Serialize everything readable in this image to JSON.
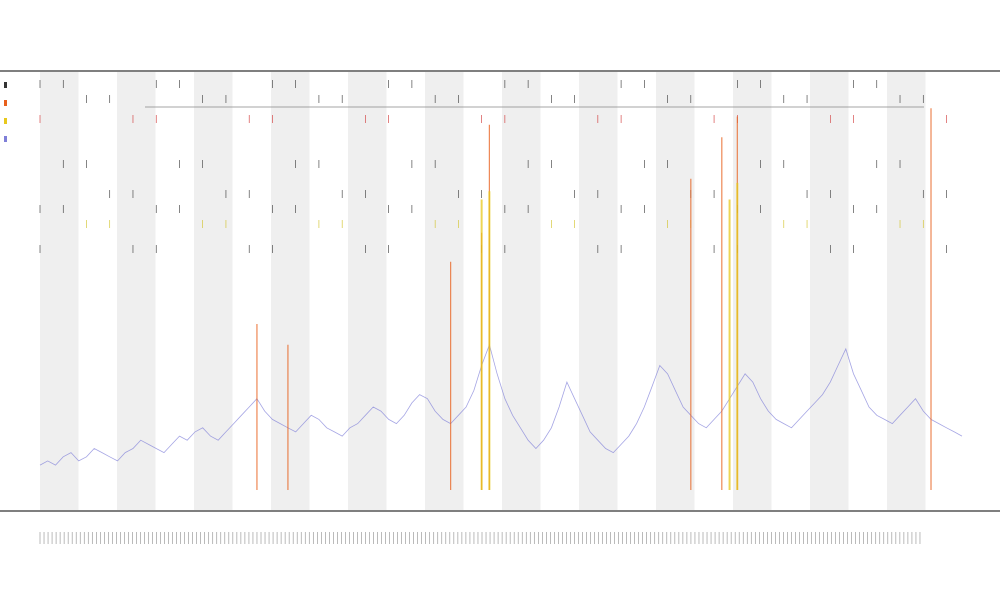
{
  "header": {
    "title": "",
    "subtitle_1": "",
    "subtitle_2": ""
  },
  "chart_data": {
    "type": "line",
    "title": "",
    "xlabel": "",
    "ylabel": "",
    "grid": false,
    "legend_position": "top-left",
    "background_bands": "alternating-gray",
    "x": [
      0,
      1,
      2,
      3,
      4,
      5,
      6,
      7,
      8,
      9,
      10,
      11,
      12,
      13,
      14,
      15,
      16,
      17,
      18,
      19,
      20,
      21,
      22,
      23,
      24,
      25,
      26,
      27,
      28,
      29,
      30,
      31,
      32,
      33,
      34,
      35,
      36,
      37,
      38,
      39,
      40,
      41,
      42,
      43,
      44,
      45,
      46,
      47,
      48,
      49,
      50,
      51,
      52,
      53,
      54,
      55,
      56,
      57,
      58,
      59,
      60,
      61,
      62,
      63,
      64,
      65,
      66,
      67,
      68,
      69,
      70,
      71,
      72,
      73,
      74,
      75,
      76,
      77,
      78,
      79,
      80,
      81,
      82,
      83,
      84,
      85,
      86,
      87,
      88,
      89,
      90,
      91,
      92,
      93,
      94,
      95,
      96,
      97,
      98,
      99,
      100,
      101,
      102,
      103,
      104,
      105,
      106,
      107,
      108,
      109,
      110,
      111,
      112,
      113,
      114,
      115,
      116,
      117,
      118,
      119
    ],
    "series": [
      {
        "color": "#7f7fd8",
        "values": [
          6,
          7,
          6,
          8,
          9,
          7,
          8,
          10,
          9,
          8,
          7,
          9,
          10,
          12,
          11,
          10,
          9,
          11,
          13,
          12,
          14,
          15,
          13,
          12,
          14,
          16,
          18,
          20,
          22,
          19,
          17,
          16,
          15,
          14,
          16,
          18,
          17,
          15,
          14,
          13,
          15,
          16,
          18,
          20,
          19,
          17,
          16,
          18,
          21,
          23,
          22,
          19,
          17,
          16,
          18,
          20,
          24,
          30,
          35,
          28,
          22,
          18,
          15,
          12,
          10,
          12,
          15,
          20,
          26,
          22,
          18,
          14,
          12,
          10,
          9,
          11,
          13,
          16,
          20,
          25,
          30,
          28,
          24,
          20,
          18,
          16,
          15,
          17,
          19,
          22,
          25,
          28,
          26,
          22,
          19,
          17,
          16,
          15,
          17,
          19,
          21,
          23,
          26,
          30,
          34,
          28,
          24,
          20,
          18,
          17,
          16,
          18,
          20,
          22,
          19,
          17,
          16,
          15,
          14,
          13
        ]
      },
      {
        "color": "#e8601c",
        "values": [
          0,
          0,
          0,
          0,
          0,
          0,
          0,
          0,
          0,
          0,
          0,
          0,
          0,
          0,
          0,
          0,
          0,
          0,
          0,
          0,
          0,
          0,
          0,
          0,
          0,
          0,
          0,
          0,
          40,
          0,
          0,
          0,
          35,
          0,
          0,
          0,
          0,
          0,
          0,
          0,
          0,
          0,
          0,
          0,
          0,
          0,
          0,
          0,
          0,
          0,
          0,
          0,
          0,
          55,
          0,
          0,
          0,
          62,
          88,
          0,
          0,
          0,
          0,
          0,
          0,
          0,
          0,
          0,
          0,
          0,
          0,
          0,
          0,
          0,
          0,
          0,
          0,
          0,
          0,
          0,
          0,
          0,
          0,
          0,
          75,
          0,
          0,
          0,
          85,
          0,
          90,
          0,
          0,
          0,
          0,
          0,
          0,
          0,
          0,
          0,
          0,
          0,
          0,
          0,
          0,
          0,
          0,
          0,
          0,
          0,
          0,
          0,
          0,
          0,
          0,
          92,
          0,
          0,
          0,
          0
        ]
      },
      {
        "color": "#e8c81c",
        "values": [
          0,
          0,
          0,
          0,
          0,
          0,
          0,
          0,
          0,
          0,
          0,
          0,
          0,
          0,
          0,
          0,
          0,
          0,
          0,
          0,
          0,
          0,
          0,
          0,
          0,
          0,
          0,
          0,
          0,
          0,
          0,
          0,
          0,
          0,
          0,
          0,
          0,
          0,
          0,
          0,
          0,
          0,
          0,
          0,
          0,
          0,
          0,
          0,
          0,
          0,
          0,
          0,
          0,
          0,
          0,
          0,
          0,
          70,
          72,
          0,
          0,
          0,
          0,
          0,
          0,
          0,
          0,
          0,
          0,
          0,
          0,
          0,
          0,
          0,
          0,
          0,
          0,
          0,
          0,
          0,
          0,
          0,
          0,
          0,
          0,
          0,
          0,
          0,
          0,
          70,
          74,
          0,
          0,
          0,
          0,
          0,
          0,
          0,
          0,
          0,
          0,
          0,
          0,
          0,
          0,
          0,
          0,
          0,
          0,
          0,
          0,
          0,
          0,
          0,
          0,
          0,
          0,
          0,
          0,
          0
        ]
      }
    ],
    "ylim": [
      0,
      100
    ]
  },
  "legend": {
    "items": [
      "",
      "",
      "",
      ""
    ]
  }
}
